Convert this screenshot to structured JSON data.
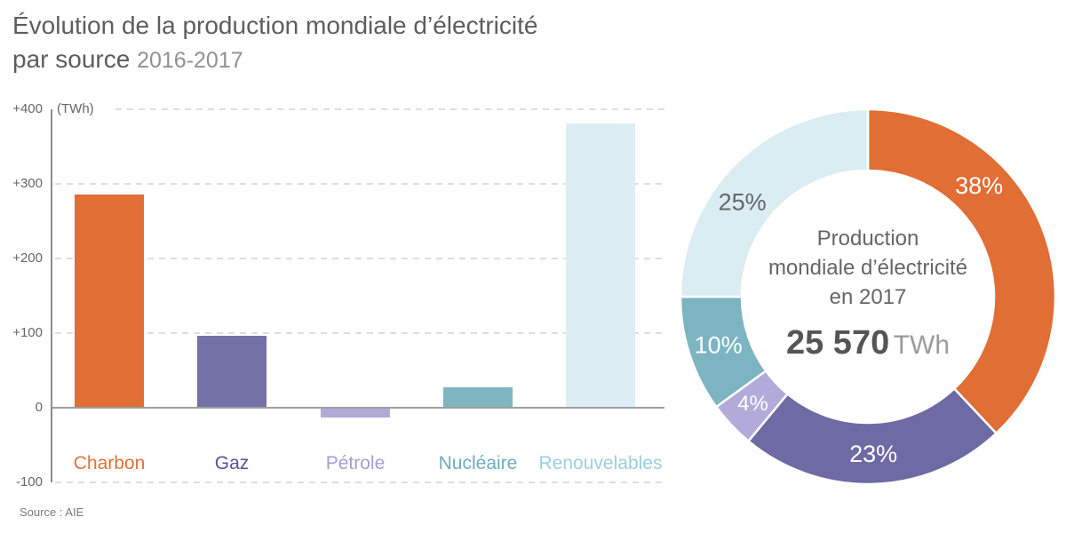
{
  "header": {
    "title_line1": "Évolution de la production mondiale d’électricité",
    "title_line2": "par source",
    "subtitle": "2016-2017"
  },
  "source": {
    "label": "Source : AIE"
  },
  "chart_data": [
    {
      "type": "bar",
      "title": "Évolution de la production mondiale d’électricité par source 2016-2017",
      "unit_label": "(TWh)",
      "categories": [
        "Charbon",
        "Gaz",
        "Pétrole",
        "Nucléaire",
        "Renouvelables"
      ],
      "values": [
        285,
        95,
        -12,
        26,
        380
      ],
      "bar_colors": [
        "#e06e35",
        "#7471a5",
        "#b0aad9",
        "#80b6c2",
        "#dcedf3"
      ],
      "label_colors": [
        "#e2703a",
        "#55519b",
        "#a59ed9",
        "#6fadc0",
        "#9ad0e0"
      ],
      "ylim": [
        -100,
        400
      ],
      "ylabel": "TWh",
      "yticks": [
        "+400",
        "+300",
        "+200",
        "+100",
        "0",
        "-100"
      ],
      "ytick_values": [
        400,
        300,
        200,
        100,
        0,
        -100
      ],
      "grid": "dashed horizontal, solid zero baseline"
    },
    {
      "type": "pie",
      "donut": true,
      "title": "Production mondiale d’électricité en 2017",
      "total": "25 570",
      "total_unit": "TWh",
      "start_angle_deg": 0,
      "clockwise": true,
      "slices": [
        {
          "label": "Charbon",
          "value_pct": 38,
          "display": "38%",
          "color": "#e06e35",
          "text_color": "#ffffff"
        },
        {
          "label": "Gaz",
          "value_pct": 23,
          "display": "23%",
          "color": "#6d6aa4",
          "text_color": "#ffffff"
        },
        {
          "label": "Pétrole",
          "value_pct": 4,
          "display": "4%",
          "color": "#b2abda",
          "text_color": "#ffffff"
        },
        {
          "label": "Nucléaire",
          "value_pct": 10,
          "display": "10%",
          "color": "#7cb5c1",
          "text_color": "#ffffff"
        },
        {
          "label": "Renouvelables",
          "value_pct": 25,
          "display": "25%",
          "color": "#daedf3",
          "text_color": "#666666"
        }
      ],
      "label_angles_deg": [
        45,
        178,
        227,
        252,
        307
      ],
      "label_radius": 177,
      "label_sizes": [
        27,
        27,
        24,
        27,
        27
      ],
      "center_text": {
        "lines": [
          "Production",
          "mondiale d’électricité",
          "en 2017"
        ],
        "total_value": "25 570",
        "total_unit": "TWh"
      }
    }
  ]
}
